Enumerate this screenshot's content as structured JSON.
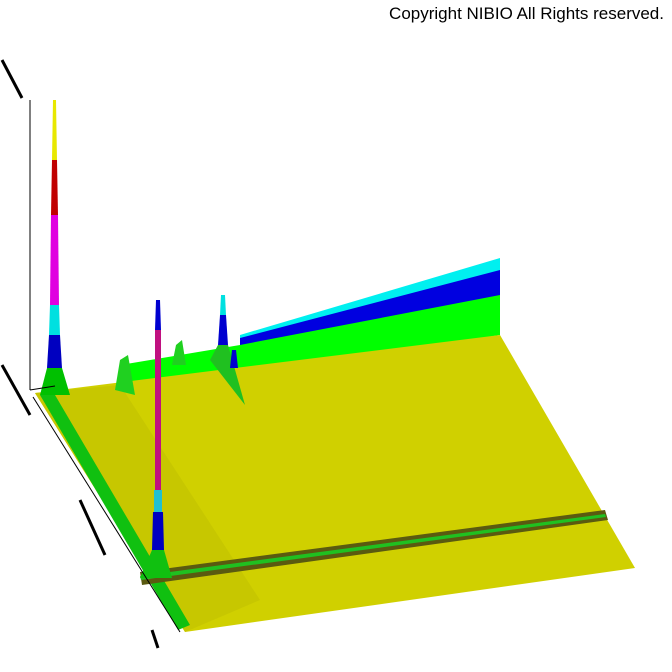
{
  "copyright": "Copyright NIBIO All Rights reserved.",
  "chart_data": {
    "type": "surface",
    "title": "",
    "xlabel": "",
    "ylabel": "",
    "zlabel": "",
    "color_levels": [
      "#c8c800",
      "#00e000",
      "#0000d0",
      "#00e0e0",
      "#e000e0",
      "#c00000",
      "#ffff40"
    ],
    "grid": false
  }
}
